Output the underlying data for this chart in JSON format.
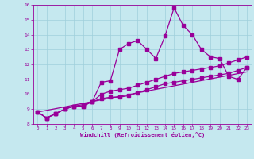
{
  "xlabel": "Windchill (Refroidissement éolien,°C)",
  "xlim": [
    -0.5,
    23.5
  ],
  "ylim": [
    8,
    16
  ],
  "xticks": [
    0,
    1,
    2,
    3,
    4,
    5,
    6,
    7,
    8,
    9,
    10,
    11,
    12,
    13,
    14,
    15,
    16,
    17,
    18,
    19,
    20,
    21,
    22,
    23
  ],
  "yticks": [
    8,
    9,
    10,
    11,
    12,
    13,
    14,
    15,
    16
  ],
  "bg_color": "#c5e8ef",
  "line_color": "#990099",
  "grid_color": "#9fcfdb",
  "series1_x": [
    0,
    1,
    2,
    3,
    4,
    5,
    6,
    7,
    8,
    9,
    10,
    11,
    12,
    13,
    14,
    15,
    16,
    17,
    18,
    19,
    20,
    21,
    22,
    23
  ],
  "series1_y": [
    8.8,
    8.4,
    8.7,
    9.0,
    9.2,
    9.2,
    9.5,
    10.8,
    10.9,
    13.0,
    13.4,
    13.6,
    13.0,
    12.4,
    13.9,
    15.8,
    14.6,
    14.0,
    13.0,
    12.5,
    12.4,
    11.2,
    11.0,
    11.8
  ],
  "series2_x": [
    0,
    1,
    2,
    3,
    4,
    5,
    6,
    7,
    8,
    9,
    10,
    11,
    12,
    13,
    14,
    15,
    16,
    17,
    18,
    19,
    20,
    21,
    22,
    23
  ],
  "series2_y": [
    8.8,
    8.4,
    8.7,
    9.0,
    9.2,
    9.2,
    9.5,
    10.0,
    10.2,
    10.3,
    10.4,
    10.6,
    10.8,
    11.0,
    11.2,
    11.4,
    11.5,
    11.6,
    11.7,
    11.8,
    11.9,
    12.1,
    12.3,
    12.5
  ],
  "series3_x": [
    0,
    1,
    2,
    3,
    4,
    5,
    6,
    7,
    8,
    9,
    10,
    11,
    12,
    13,
    14,
    15,
    16,
    17,
    18,
    19,
    20,
    21,
    22,
    23
  ],
  "series3_y": [
    8.8,
    8.4,
    8.7,
    9.0,
    9.2,
    9.3,
    9.5,
    9.7,
    9.8,
    9.8,
    9.9,
    10.1,
    10.3,
    10.5,
    10.7,
    10.8,
    10.9,
    11.0,
    11.1,
    11.2,
    11.3,
    11.4,
    11.6,
    11.8
  ],
  "series4_x": [
    0,
    23
  ],
  "series4_y": [
    8.8,
    11.5
  ]
}
